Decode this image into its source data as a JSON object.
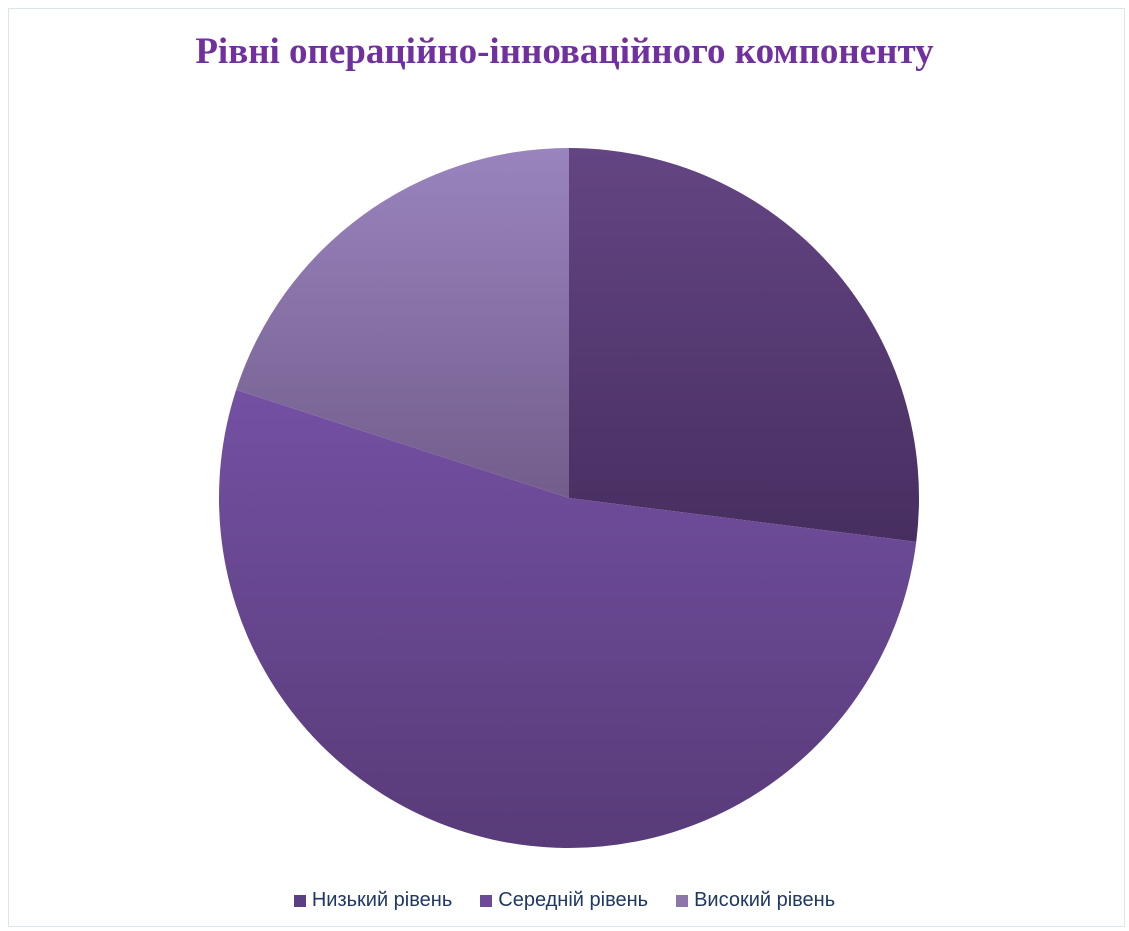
{
  "chart_data": {
    "type": "pie",
    "title": "Рівні операційно-інноваційного компоненту",
    "categories": [
      "Низький рівень",
      "Середній рівень",
      "Високий рівень"
    ],
    "values": [
      27,
      53,
      20
    ],
    "colors": [
      "#5b3f83",
      "#6b4b96",
      "#8b77aa"
    ],
    "legend_position": "bottom"
  }
}
